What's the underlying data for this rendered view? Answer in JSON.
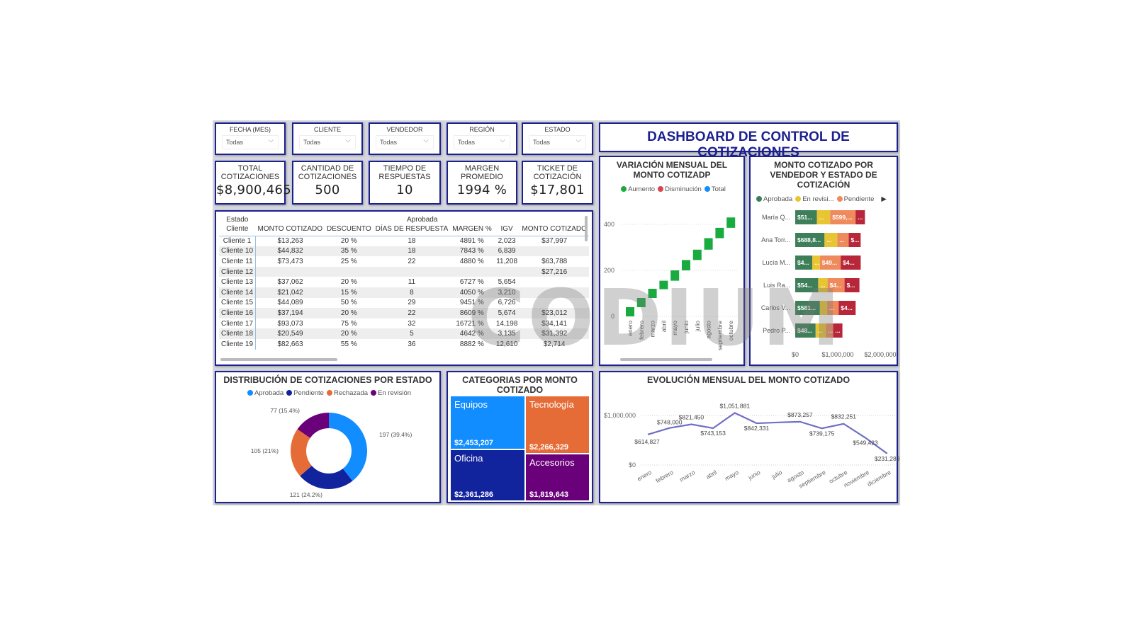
{
  "title": "DASHBOARD DE CONTROL DE COTIZACIONES",
  "watermark": "CODIUM",
  "filters": [
    {
      "label": "FECHA (MES)",
      "value": "Todas"
    },
    {
      "label": "CLIENTE",
      "value": "Todas"
    },
    {
      "label": "VENDEDOR",
      "value": "Todas"
    },
    {
      "label": "REGIÓN",
      "value": "Todas"
    },
    {
      "label": "ESTADO",
      "value": "Todas"
    }
  ],
  "kpis": [
    {
      "label": "TOTAL COTIZACIONES",
      "value": "$8,900,465"
    },
    {
      "label": "CANTIDAD DE COTIZACIONES",
      "value": "500"
    },
    {
      "label": "TIEMPO DE RESPUESTAS",
      "value": "10"
    },
    {
      "label": "MARGEN PROMEDIO",
      "value": "1994 %"
    },
    {
      "label": "TICKET DE COTIZACIÓN",
      "value": "$17,801"
    }
  ],
  "table": {
    "row_header_1": "Estado",
    "row_header_2": "Cliente",
    "group": "Aprobada",
    "columns": [
      "MONTO COTIZADO",
      "DESCUENTO",
      "DÍAS DE RESPUESTA",
      "MARGEN %",
      "IGV",
      "MONTO COTIZADO"
    ],
    "rows": [
      [
        "Cliente 1",
        "$13,263",
        "20 %",
        "18",
        "4891 %",
        "2,023",
        "$37,997"
      ],
      [
        "Cliente 10",
        "$44,832",
        "35 %",
        "18",
        "7843 %",
        "6,839",
        ""
      ],
      [
        "Cliente 11",
        "$73,473",
        "25 %",
        "22",
        "4880 %",
        "11,208",
        "$63,788"
      ],
      [
        "Cliente 12",
        "",
        "",
        "",
        "",
        "",
        "$27,216"
      ],
      [
        "Cliente 13",
        "$37,062",
        "20 %",
        "11",
        "6727 %",
        "5,654",
        ""
      ],
      [
        "Cliente 14",
        "$21,042",
        "15 %",
        "8",
        "4050 %",
        "3,210",
        ""
      ],
      [
        "Cliente 15",
        "$44,089",
        "50 %",
        "29",
        "9451 %",
        "6,726",
        ""
      ],
      [
        "Cliente 16",
        "$37,194",
        "20 %",
        "22",
        "8609 %",
        "5,674",
        "$23,012"
      ],
      [
        "Cliente 17",
        "$93,073",
        "75 %",
        "32",
        "16721 %",
        "14,198",
        "$34,141"
      ],
      [
        "Cliente 18",
        "$20,549",
        "20 %",
        "5",
        "4642 %",
        "3,135",
        "$31,392"
      ],
      [
        "Cliente 19",
        "$82,663",
        "55 %",
        "36",
        "8882 %",
        "12,610",
        "$2,714"
      ]
    ]
  },
  "colors": {
    "border": "#1c2190",
    "blue": "#118DFF",
    "navy": "#12239E",
    "orange": "#E66C37",
    "purple": "#6B007B",
    "green": "#1AAB40",
    "red": "#D64550"
  },
  "chart_data": [
    {
      "type": "bar",
      "subtype": "waterfall",
      "title": "VARIACIÓN MENSUAL DEL MONTO COTIZADP",
      "legend": [
        "Aumento",
        "Disminución",
        "Total"
      ],
      "legend_colors": [
        "#1AAB40",
        "#D64550",
        "#118DFF"
      ],
      "categories": [
        "enero",
        "febrero",
        "marzo",
        "abril",
        "mayo",
        "junio",
        "julio",
        "agosto",
        "septiembre",
        "octubre"
      ],
      "increments": [
        40,
        40,
        40,
        35,
        45,
        45,
        45,
        50,
        45,
        45
      ],
      "yticks": [
        "0",
        "200",
        "400"
      ],
      "ylim": [
        0,
        460
      ],
      "grid": true
    },
    {
      "type": "bar",
      "subtype": "stacked-horizontal",
      "title": "MONTO COTIZADO POR VENDEDOR Y ESTADO DE COTIZACIÓN",
      "legend": [
        "Aprobada",
        "En revisi...",
        "Pendiente"
      ],
      "categories": [
        "María Q...",
        "Ana Torr...",
        "Lucía M...",
        "Luis Ra...",
        "Carlos V...",
        "Pedro P..."
      ],
      "series": [
        {
          "name": "Aprobada",
          "color": "#3E7F5A",
          "values": [
            510000,
            688800,
            400000,
            540000,
            581000,
            480000
          ],
          "labels": [
            "$51...",
            "$688,8...",
            "$4...",
            "$54...",
            "$581...",
            "$48..."
          ]
        },
        {
          "name": "En revisión",
          "color": "#E8C532",
          "values": [
            310000,
            300000,
            180000,
            220000,
            170000,
            240000
          ],
          "labels": [
            "...",
            "...",
            "...",
            "...",
            "",
            "..."
          ]
        },
        {
          "name": "Pendiente",
          "color": "#EE8A5C",
          "values": [
            599000,
            270000,
            490000,
            400000,
            270000,
            170000
          ],
          "labels": [
            "$599,...",
            "...",
            "$49...",
            "$4...",
            "...",
            "..."
          ]
        },
        {
          "color": "#B8263A",
          "values": [
            220000,
            280000,
            470000,
            350000,
            400000,
            220000
          ],
          "labels": [
            "...",
            "$...",
            "$4...",
            "$...",
            "$4...",
            "..."
          ]
        }
      ],
      "xticks": [
        "$0",
        "$1,000,000",
        "$2,000,000"
      ],
      "xlim": [
        0,
        2000000
      ]
    },
    {
      "type": "pie",
      "subtype": "donut",
      "title": "DISTRIBUCIÓN DE COTIZACIONES POR ESTADO",
      "categories": [
        "Aprobada",
        "Pendiente",
        "Rechazada",
        "En revisión"
      ],
      "values": [
        197,
        121,
        105,
        77
      ],
      "labels": [
        "197 (39.4%)",
        "121 (24.2%)",
        "105 (21%)",
        "77 (15.4%)"
      ],
      "colors": [
        "#118DFF",
        "#12239E",
        "#E66C37",
        "#6B007B"
      ],
      "legend": "top"
    },
    {
      "type": "heatmap",
      "subtype": "treemap",
      "title": "CATEGORIAS POR MONTO COTIZADO",
      "categories": [
        "Equipos",
        "Tecnología",
        "Oficina",
        "Accesorios"
      ],
      "values": [
        "$2,453,207",
        "$2,266,329",
        "$2,361,286",
        "$1,819,643"
      ],
      "colors": [
        "#118DFF",
        "#E66C37",
        "#12239E",
        "#6B007B"
      ]
    },
    {
      "type": "line",
      "title": "EVOLUCIÓN MENSUAL DEL MONTO COTIZADO",
      "categories": [
        "enero",
        "febrero",
        "marzo",
        "abril",
        "mayo",
        "junio",
        "julio",
        "agosto",
        "septiembre",
        "octubre",
        "noviembre",
        "diciembre"
      ],
      "values": [
        614827,
        748000,
        821450,
        743153,
        1051881,
        842331,
        860000,
        873257,
        739175,
        832251,
        549423,
        231289
      ],
      "labels": [
        "$614,827",
        "$748,000",
        "$821,450",
        "$743,153",
        "$1,051,881",
        "$842,331",
        "",
        "$873,257",
        "$739,175",
        "$832,251",
        "$549,423",
        "$231,289"
      ],
      "yticks": [
        "$0",
        "$1,000,000"
      ],
      "ylim": [
        0,
        1000000
      ],
      "color": "#6E6FC4",
      "grid": true
    }
  ]
}
